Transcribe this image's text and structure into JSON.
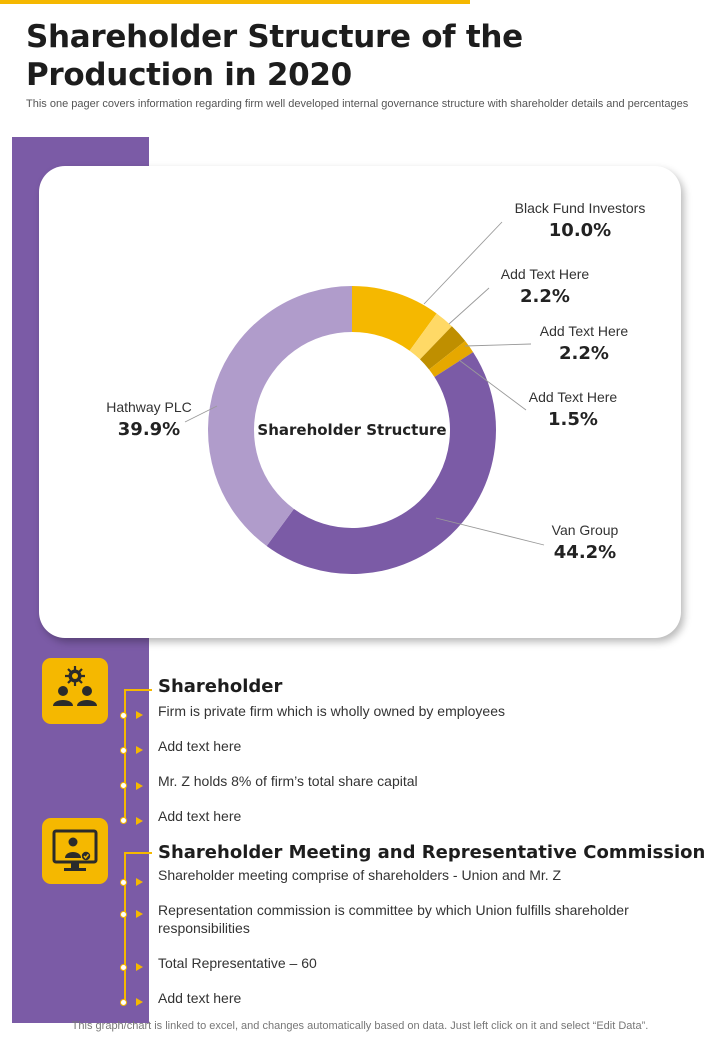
{
  "page": {
    "title": "Shareholder Structure of the Production in 2020",
    "subtitle": "This one pager covers information regarding firm well developed internal governance structure with shareholder details and percentages"
  },
  "colors": {
    "accent": "#F5B800",
    "purple": "#7B5BA6",
    "light_purple": "#B09CCB",
    "light_yellow": "#FFD966",
    "dark_yellow": "#BF8F00",
    "orange_yellow": "#E6A800"
  },
  "chart_data": {
    "type": "pie",
    "variant": "donut",
    "title": "Shareholder Structure",
    "slices": [
      {
        "label": "Black Fund Investors",
        "value": 10.0,
        "display": "10.0%",
        "color": "#F5B800"
      },
      {
        "label": "Add Text Here",
        "value": 2.2,
        "display": "2.2%",
        "color": "#FFD966"
      },
      {
        "label": "Add Text Here",
        "value": 2.2,
        "display": "2.2%",
        "color": "#BF8F00"
      },
      {
        "label": "Add Text Here",
        "value": 1.5,
        "display": "1.5%",
        "color": "#E6A800"
      },
      {
        "label": "Van Group",
        "value": 44.2,
        "display": "44.2%",
        "color": "#7B5BA6"
      },
      {
        "label": "Hathway PLC",
        "value": 39.9,
        "display": "39.9%",
        "color": "#B09CCB"
      }
    ]
  },
  "sections": {
    "shareholder": {
      "icon": "people-gear-icon",
      "heading": "Shareholder",
      "items": [
        "Firm is private firm which is wholly owned by employees",
        "Add text here",
        "Mr. Z holds 8% of firm’s total share capital",
        "Add text here"
      ]
    },
    "meeting": {
      "icon": "presenter-monitor-icon",
      "heading": "Shareholder Meeting and Representative Commission",
      "items": [
        "Shareholder meeting comprise of shareholders - Union and Mr. Z",
        "Representation commission is committee by which Union fulfills shareholder responsibilities",
        "Total Representative – 60",
        "Add text here"
      ]
    }
  },
  "footer": {
    "note": "This graph/chart is linked to excel, and changes automatically based on data. Just left click on it and select “Edit Data”."
  }
}
